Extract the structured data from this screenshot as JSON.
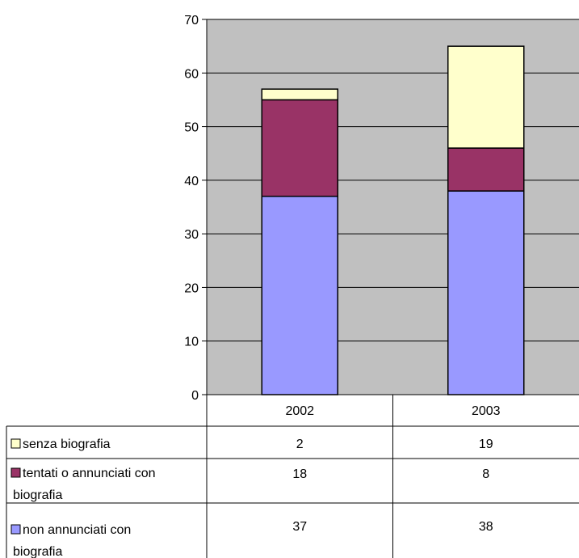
{
  "chart_data": {
    "type": "bar",
    "stacked": true,
    "categories": [
      "2002",
      "2003"
    ],
    "series": [
      {
        "name": "non annunciati con biografia",
        "values": [
          37,
          38
        ],
        "color": "#9999ff"
      },
      {
        "name": "tentati o annunciati con biografia",
        "values": [
          18,
          8
        ],
        "color": "#993366"
      },
      {
        "name": "senza biografia",
        "values": [
          2,
          19
        ],
        "color": "#ffffcc"
      }
    ],
    "ylim": [
      0,
      70
    ],
    "yticks": [
      0,
      10,
      20,
      30,
      40,
      50,
      60,
      70
    ],
    "grid": true,
    "legend": "data-table-left",
    "plot_background": "#c0c0c0",
    "data_table": {
      "rows": [
        {
          "label_line1": "senza biografia",
          "label_line2": "",
          "color": "#ffffcc",
          "values": [
            "2",
            "19"
          ]
        },
        {
          "label_line1": "tentati o annunciati con",
          "label_line2": "biografia",
          "color": "#993366",
          "values": [
            "18",
            "8"
          ]
        },
        {
          "label_line1": "non annunciati con",
          "label_line2": "biografia",
          "color": "#9999ff",
          "values": [
            "37",
            "38"
          ]
        }
      ]
    }
  }
}
